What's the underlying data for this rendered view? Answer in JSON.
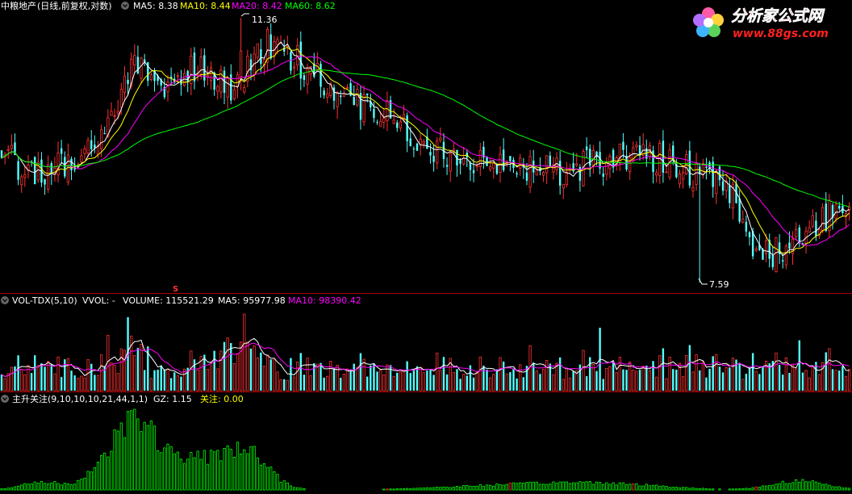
{
  "price_panel": {
    "stock_name": "中粮地产",
    "mode": "(日线,前复权,对数)",
    "indicators": [
      {
        "label": "MA5: 8.38",
        "color": "#ffffff"
      },
      {
        "label": "MA10: 8.44",
        "color": "#ffff00"
      },
      {
        "label": "MA20: 8.42",
        "color": "#ff00ff"
      },
      {
        "label": "MA60: 8.62",
        "color": "#00ff00"
      }
    ],
    "high_label": "11.36",
    "low_label": "7.59",
    "marker": "S"
  },
  "volume_panel": {
    "title": "VOL-TDX(5,10)",
    "vvol": "VVOL: -",
    "volume": "VOLUME: 115521.29",
    "ma5": "MA5: 95977.98",
    "ma10": "MA10: 98390.42"
  },
  "zs_panel": {
    "title": "主升关注(9,10,10,10,21,44,1,1)",
    "gz": "GZ: 1.15",
    "gz_label": "关注: 0.00"
  },
  "logo": {
    "brand": "分析家公式网",
    "url": "www.88gs.com"
  },
  "colors": {
    "up": "#ff3232",
    "down": "#54ffff",
    "ma5": "#ffffff",
    "ma10": "#ffff00",
    "ma20": "#ff00ff",
    "ma60": "#00ff00",
    "separator": "#b40000",
    "zs_bar": "#00ff00",
    "zs_alt": "#ff3232"
  },
  "chart_data": {
    "type": "candlestick",
    "price_axis": "log",
    "ylim": [
      7.59,
      11.36
    ],
    "anchors": [
      {
        "i": 0,
        "p": 9.25
      },
      {
        "i": 10,
        "p": 8.95
      },
      {
        "i": 20,
        "p": 9.1
      },
      {
        "i": 30,
        "p": 9.55
      },
      {
        "i": 40,
        "p": 10.55
      },
      {
        "i": 50,
        "p": 10.2
      },
      {
        "i": 60,
        "p": 10.6
      },
      {
        "i": 70,
        "p": 10.2
      },
      {
        "i": 80,
        "p": 10.95
      },
      {
        "i": 90,
        "p": 10.6
      },
      {
        "i": 100,
        "p": 10.1
      },
      {
        "i": 110,
        "p": 9.9
      },
      {
        "i": 120,
        "p": 9.7
      },
      {
        "i": 130,
        "p": 9.3
      },
      {
        "i": 140,
        "p": 9.15
      },
      {
        "i": 150,
        "p": 9.1
      },
      {
        "i": 160,
        "p": 9.05
      },
      {
        "i": 170,
        "p": 9.0
      },
      {
        "i": 180,
        "p": 9.1
      },
      {
        "i": 190,
        "p": 9.25
      },
      {
        "i": 200,
        "p": 9.15
      },
      {
        "i": 210,
        "p": 8.9
      },
      {
        "i": 220,
        "p": 8.75
      },
      {
        "i": 226,
        "p": 7.85
      },
      {
        "i": 232,
        "p": 7.95
      },
      {
        "i": 240,
        "p": 8.15
      },
      {
        "i": 248,
        "p": 8.4
      },
      {
        "i": 255,
        "p": 8.38
      }
    ],
    "bars": 256,
    "volume_scale": [
      0,
      400000
    ],
    "series": [
      {
        "name": "MA5",
        "value": 8.38
      },
      {
        "name": "MA10",
        "value": 8.44
      },
      {
        "name": "MA20",
        "value": 8.42
      },
      {
        "name": "MA60",
        "value": 8.62
      }
    ]
  }
}
